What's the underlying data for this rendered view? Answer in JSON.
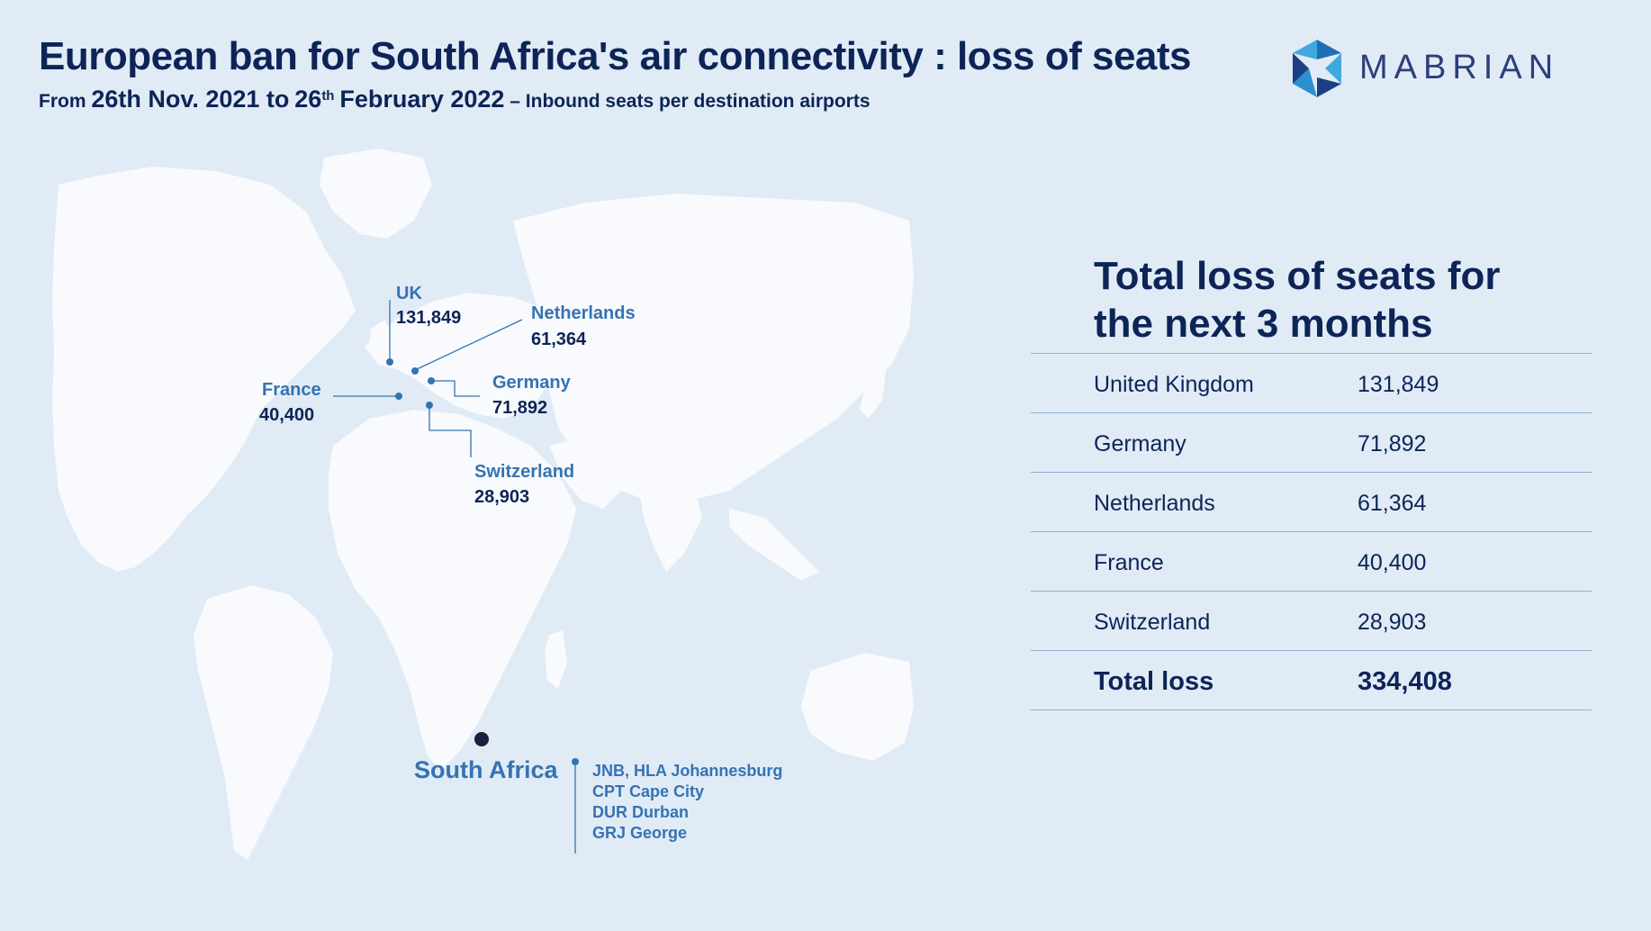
{
  "header": {
    "title": "European ban for South Africa's air connectivity : loss of seats",
    "subtitle_from": "From",
    "subtitle_date1": "26th Nov. 2021 to",
    "subtitle_date2_day": "26",
    "subtitle_date2_sup": "th",
    "subtitle_date2_rest": "February 2022",
    "subtitle_rest": "– Inbound seats per destination airports"
  },
  "logo": {
    "text": "MABRIAN",
    "colors": [
      "#1f6fb4",
      "#2b8fd0",
      "#1c3f84",
      "#3fa8df"
    ]
  },
  "map": {
    "markers": [
      {
        "country": "UK",
        "seats": "131,849"
      },
      {
        "country": "Netherlands",
        "seats": "61,364"
      },
      {
        "country": "Germany",
        "seats": "71,892"
      },
      {
        "country": "France",
        "seats": "40,400"
      },
      {
        "country": "Switzerland",
        "seats": "28,903"
      }
    ],
    "origin": {
      "label": "South Africa",
      "airports": [
        "JNB, HLA Johannesburg",
        "CPT Cape City",
        "DUR Durban",
        "GRJ George"
      ]
    },
    "colors": {
      "land": "#f8fafd",
      "sea": "#e0ebf6",
      "marker": "#3573b2",
      "origin": "#1a1f3d"
    }
  },
  "table": {
    "title": "Total loss of seats for the next 3 months",
    "rows": [
      {
        "country": "United Kingdom",
        "seats": "131,849"
      },
      {
        "country": "Germany",
        "seats": "71,892"
      },
      {
        "country": "Netherlands",
        "seats": "61,364"
      },
      {
        "country": "France",
        "seats": "40,400"
      },
      {
        "country": "Switzerland",
        "seats": "28,903"
      }
    ],
    "total": {
      "label": "Total loss",
      "seats": "334,408"
    }
  }
}
